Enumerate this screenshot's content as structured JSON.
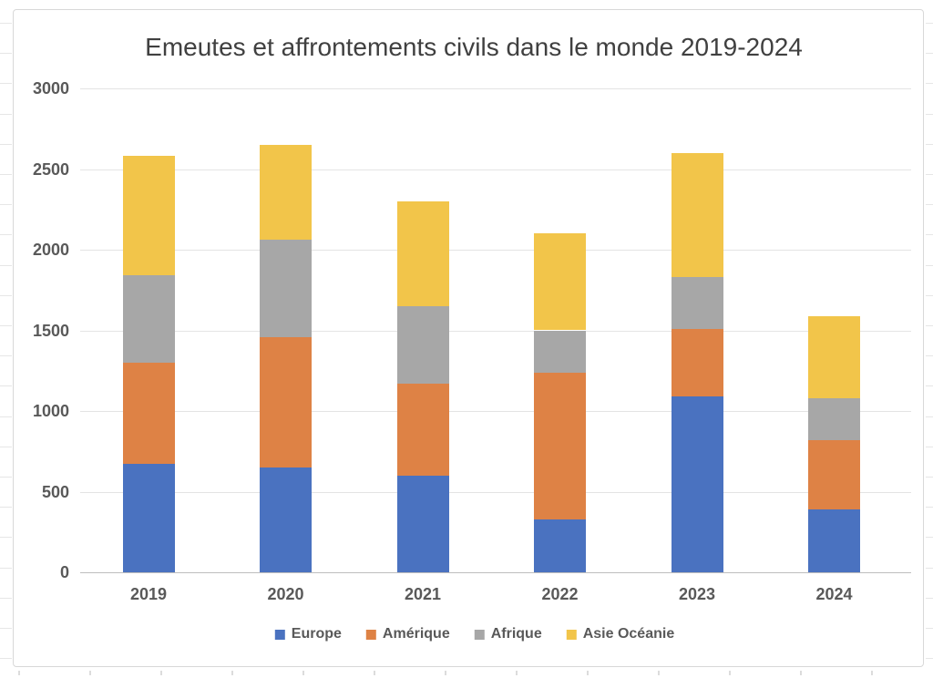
{
  "chart_data": {
    "type": "bar",
    "stacked": true,
    "title": "Emeutes et affrontements civils dans le monde 2019-2024",
    "categories": [
      "2019",
      "2020",
      "2021",
      "2022",
      "2023",
      "2024"
    ],
    "series": [
      {
        "name": "Europe",
        "color": "#4a72c0",
        "values": [
          670,
          650,
          600,
          330,
          1090,
          390
        ]
      },
      {
        "name": "Amérique",
        "color": "#de8245",
        "values": [
          630,
          810,
          570,
          910,
          420,
          430
        ]
      },
      {
        "name": "Afrique",
        "color": "#a7a7a7",
        "values": [
          540,
          600,
          480,
          260,
          320,
          260
        ]
      },
      {
        "name": "Asie Océanie",
        "color": "#f2c54a",
        "values": [
          740,
          590,
          650,
          600,
          770,
          510
        ]
      }
    ],
    "totals": [
      2580,
      2650,
      2300,
      2100,
      2600,
      1590
    ],
    "xlabel": "",
    "ylabel": "",
    "ylim": [
      0,
      3000
    ],
    "yticks": [
      0,
      500,
      1000,
      1500,
      2000,
      2500,
      3000
    ],
    "grid": true,
    "legend_position": "bottom",
    "axis_text_color": "#595959",
    "title_color": "#404040",
    "gridline_color": "#e4e4e4",
    "frame_border_color": "#d8d8d8"
  }
}
